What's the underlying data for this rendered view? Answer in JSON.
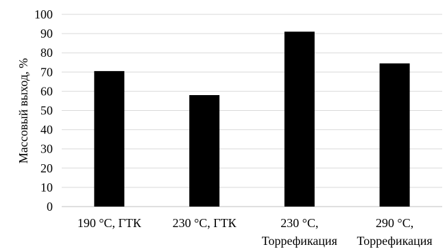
{
  "chart_data": {
    "type": "bar",
    "title": "",
    "xlabel": "",
    "ylabel": "Массовый выход, %",
    "ylim": [
      0,
      100
    ],
    "yticks": [
      0,
      10,
      20,
      30,
      40,
      50,
      60,
      70,
      80,
      90,
      100
    ],
    "grid": true,
    "legend": "none",
    "categories": [
      {
        "lines": [
          "190 °C, ГТК"
        ]
      },
      {
        "lines": [
          "230 °C, ГТК"
        ]
      },
      {
        "lines": [
          "230 °C,",
          "Торрефикация"
        ]
      },
      {
        "lines": [
          "290 °C,",
          "Торрефикация"
        ]
      }
    ],
    "values": [
      70.5,
      58,
      91,
      74.5
    ],
    "colors": {
      "bar": "#000000",
      "grid": "#d9d9d9",
      "axis": "#bfbfbf"
    }
  }
}
